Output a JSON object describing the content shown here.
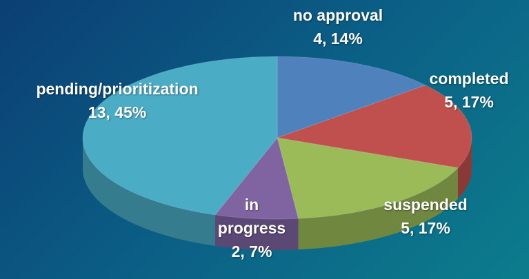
{
  "chart_data": {
    "type": "pie",
    "categories": [
      "no approval",
      "completed",
      "suspended",
      "in progress",
      "pending/prioritization"
    ],
    "values": [
      4,
      5,
      5,
      2,
      13
    ],
    "value_labels": [
      "4, 14%",
      "5, 17%",
      "5, 17%",
      "2, 7%",
      "13, 45%"
    ],
    "colors": [
      "#4f81bd",
      "#c0504d",
      "#9bbb59",
      "#8064a2",
      "#4bacc6"
    ]
  }
}
